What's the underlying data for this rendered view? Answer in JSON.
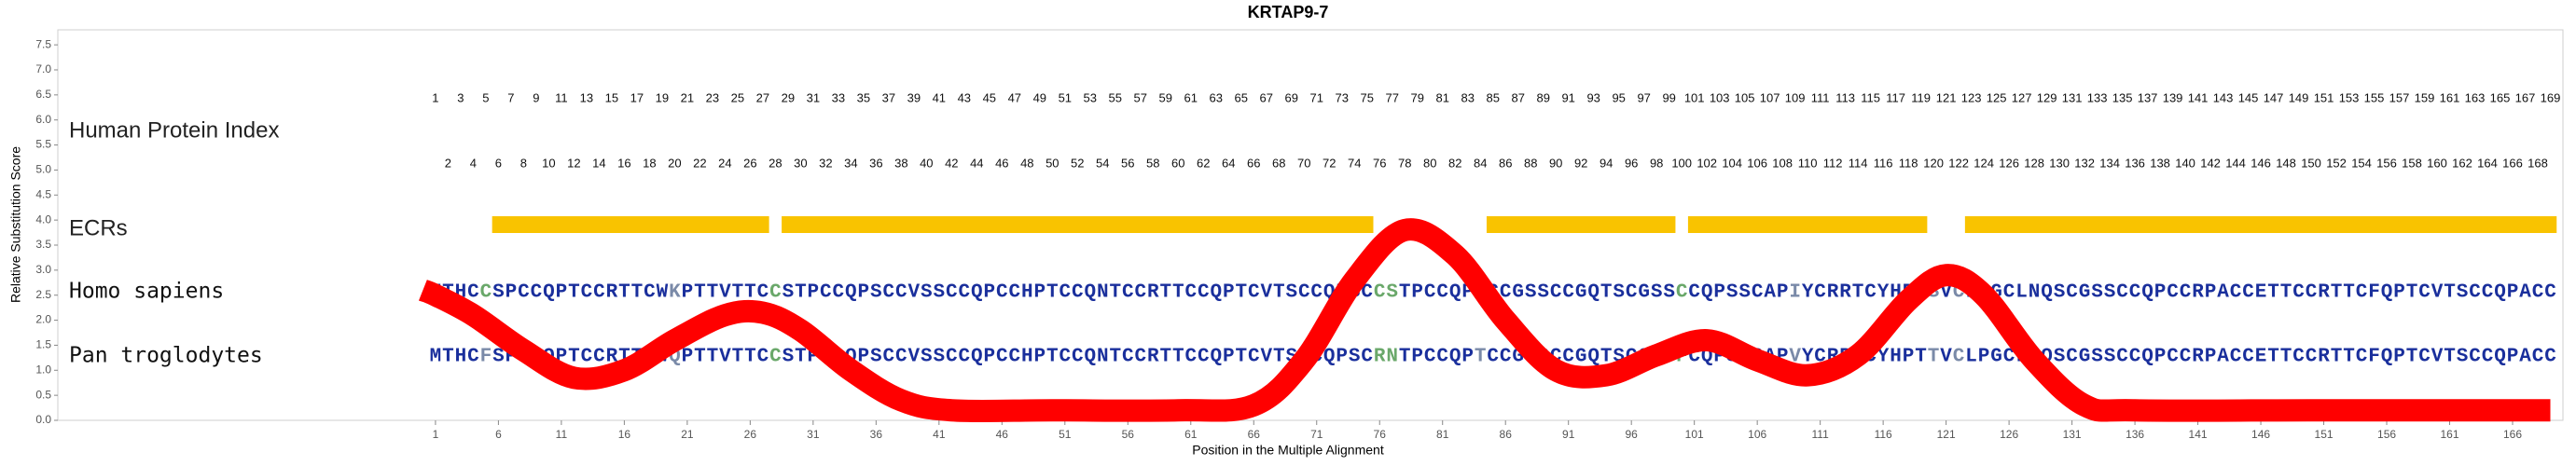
{
  "chart_data": {
    "type": "line",
    "title": "KRTAP9-7",
    "xlabel": "Position in the Multiple Alignment",
    "ylabel": "Relative Substitution Score",
    "xlim": [
      -29,
      170
    ],
    "ylim": [
      0,
      7.8
    ],
    "xticks": [
      1,
      6,
      11,
      16,
      21,
      26,
      31,
      36,
      41,
      46,
      51,
      56,
      61,
      66,
      71,
      76,
      81,
      86,
      91,
      96,
      101,
      106,
      111,
      116,
      121,
      126,
      131,
      136,
      141,
      146,
      151,
      156,
      161,
      166
    ],
    "yticks": [
      {
        "value": 0,
        "label": "0.0"
      },
      0.5,
      {
        "value": 1,
        "label": "1.0"
      },
      1.5,
      {
        "value": 2,
        "label": "2.0"
      },
      2.5,
      {
        "value": 3,
        "label": "3.0"
      },
      3.5,
      {
        "value": 4,
        "label": "4.0"
      },
      4.5,
      {
        "value": 5,
        "label": "5.0"
      },
      5.5,
      {
        "value": 6,
        "label": "6.0"
      },
      6.5,
      {
        "value": 7,
        "label": "7.0"
      },
      7.5
    ],
    "series": [
      {
        "color": "#ff0000",
        "x": [
          0,
          1,
          4,
          8,
          12,
          16,
          20,
          24,
          27,
          30,
          34,
          38,
          42,
          50,
          60,
          66,
          70,
          74,
          78,
          82,
          86,
          90,
          94,
          98,
          102,
          106,
          110,
          114,
          118,
          121,
          124,
          128,
          132,
          136,
          150,
          169
        ],
        "values": [
          2.6,
          2.5,
          2.1,
          1.4,
          0.85,
          1.0,
          1.6,
          2.1,
          2.15,
          1.8,
          1.0,
          0.4,
          0.2,
          0.2,
          0.2,
          0.3,
          1.2,
          2.8,
          3.8,
          3.3,
          2.0,
          1.0,
          0.9,
          1.3,
          1.6,
          1.2,
          0.9,
          1.3,
          2.4,
          2.9,
          2.5,
          1.2,
          0.3,
          0.2,
          0.2,
          0.2
        ]
      }
    ],
    "index_track": {
      "label": "Human Protein Index",
      "numbers": [
        1,
        2,
        3,
        4,
        5,
        6,
        7,
        8,
        9,
        10,
        11,
        12,
        13,
        14,
        15,
        16,
        17,
        18,
        19,
        20,
        21,
        22,
        23,
        24,
        25,
        26,
        27,
        28,
        29,
        30,
        31,
        32,
        33,
        34,
        35,
        36,
        37,
        38,
        39,
        40,
        41,
        42,
        43,
        44,
        45,
        46,
        47,
        48,
        49,
        50,
        51,
        52,
        53,
        54,
        55,
        56,
        57,
        58,
        59,
        60,
        61,
        62,
        63,
        64,
        65,
        66,
        67,
        68,
        69,
        70,
        71,
        72,
        73,
        74,
        75,
        76,
        77,
        78,
        79,
        80,
        81,
        82,
        83,
        84,
        85,
        86,
        87,
        88,
        89,
        90,
        91,
        92,
        93,
        94,
        95,
        96,
        97,
        98,
        99,
        100,
        101,
        102,
        103,
        104,
        105,
        106,
        107,
        108,
        109,
        110,
        111,
        112,
        113,
        114,
        115,
        116,
        117,
        118,
        119,
        120,
        121,
        122,
        123,
        124,
        125,
        126,
        127,
        128,
        129,
        130,
        131,
        132,
        133,
        134,
        135,
        136,
        137,
        138,
        139,
        140,
        141,
        142,
        143,
        144,
        145,
        146,
        147,
        148,
        149,
        150,
        151,
        152,
        153,
        154,
        155,
        156,
        157,
        158,
        159,
        160,
        161,
        162,
        163,
        164,
        165,
        166,
        167,
        168,
        169
      ]
    },
    "ecr_track": {
      "label": "ECRs",
      "color": "#f9c300",
      "ranges": [
        [
          6,
          27
        ],
        [
          29,
          75
        ],
        [
          85,
          99
        ],
        [
          101,
          119
        ],
        [
          123,
          169
        ]
      ]
    },
    "sequences": [
      {
        "label": "Homo sapiens",
        "segments": [
          {
            "text": "MTHC",
            "color": "#1a2f9c"
          },
          {
            "text": "C",
            "color": "#6aa86a"
          },
          {
            "text": "SPCCQPTCCRTTCW",
            "color": "#1a2f9c"
          },
          {
            "text": "K",
            "color": "#7a8aa8"
          },
          {
            "text": "PTTVTTC",
            "color": "#1a2f9c"
          },
          {
            "text": "C",
            "color": "#6aa86a"
          },
          {
            "text": "STPCCQPSCCVSSCCQPCCHPTCCQNTCCRTTCCQPTCVTSCCQPSC",
            "color": "#1a2f9c"
          },
          {
            "text": "CS",
            "color": "#6aa86a"
          },
          {
            "text": "TPCCQP",
            "color": "#1a2f9c"
          },
          {
            "text": "I",
            "color": "#7a8aa8"
          },
          {
            "text": "CCGSSCCGQTSCGSS",
            "color": "#1a2f9c"
          },
          {
            "text": "C",
            "color": "#6aa86a"
          },
          {
            "text": "CQPSSCAP",
            "color": "#1a2f9c"
          },
          {
            "text": "I",
            "color": "#7a8aa8"
          },
          {
            "text": "YCRRTCYHPT",
            "color": "#1a2f9c"
          },
          {
            "text": "S",
            "color": "#7a8aa8"
          },
          {
            "text": "V",
            "color": "#1a2f9c"
          },
          {
            "text": "C",
            "color": "#7a8aa8"
          },
          {
            "text": "LPGCLNQSCGSSCCQPCCRPACCETTCCRTTCFQPTCVTSCCQPACC",
            "color": "#1a2f9c"
          }
        ]
      },
      {
        "label": "Pan troglodytes",
        "segments": [
          {
            "text": "MTHC",
            "color": "#1a2f9c"
          },
          {
            "text": "F",
            "color": "#7a8aa8"
          },
          {
            "text": "SPCCQPTCCRTTCW",
            "color": "#1a2f9c"
          },
          {
            "text": "Q",
            "color": "#7a8aa8"
          },
          {
            "text": "PTTVTTC",
            "color": "#1a2f9c"
          },
          {
            "text": "C",
            "color": "#6aa86a"
          },
          {
            "text": "STPCCQPSCCVSSCCQPCCHPTCCQNTCCRTTCCQPTCVTSCCQPSC",
            "color": "#1a2f9c"
          },
          {
            "text": "RN",
            "color": "#6aa86a"
          },
          {
            "text": "TPCCQP",
            "color": "#1a2f9c"
          },
          {
            "text": "T",
            "color": "#7a8aa8"
          },
          {
            "text": "CCGSSCCGQTSCGSS",
            "color": "#1a2f9c"
          },
          {
            "text": "F",
            "color": "#6aa86a"
          },
          {
            "text": "CQPSSCAP",
            "color": "#1a2f9c"
          },
          {
            "text": "V",
            "color": "#7a8aa8"
          },
          {
            "text": "YCRRTCYHPT",
            "color": "#1a2f9c"
          },
          {
            "text": "T",
            "color": "#7a8aa8"
          },
          {
            "text": "V",
            "color": "#1a2f9c"
          },
          {
            "text": "C",
            "color": "#7a8aa8"
          },
          {
            "text": "LPGCLNQSCGSSCCQPCCRPACCETTCCRTTCFQPTCVTSCCQPACC",
            "color": "#1a2f9c"
          }
        ]
      }
    ]
  }
}
